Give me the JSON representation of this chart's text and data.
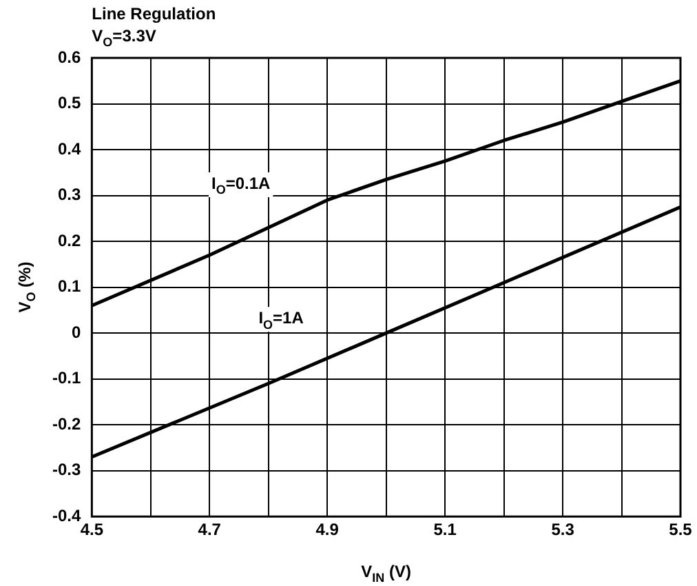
{
  "chart_data": {
    "type": "line",
    "title": "Line Regulation",
    "subtitle": "V$_{O}$=3.3V",
    "xlabel": "V$_{IN}$ (V)",
    "ylabel": "V$_{O}$ (%)",
    "xlim": [
      4.5,
      5.5
    ],
    "xticks": [
      4.5,
      {
        "value": 4.6,
        "label": null
      },
      4.7,
      {
        "value": 4.8,
        "label": null
      },
      4.9,
      {
        "value": 5.0,
        "label": null
      },
      5.1,
      {
        "value": 5.2,
        "label": null
      },
      5.3,
      {
        "value": 5.4,
        "label": null
      },
      5.5
    ],
    "ylim": [
      -0.4,
      0.6
    ],
    "yticks": [
      -0.4,
      -0.3,
      -0.2,
      -0.1,
      0,
      0.1,
      0.2,
      0.3,
      0.4,
      0.5,
      0.6
    ],
    "grid": true,
    "legend": false,
    "marker": "none",
    "line_style": "solid",
    "series": [
      {
        "name": "I$_{O}$=0.1A",
        "color": "#000000",
        "x": [
          4.5,
          4.7,
          4.9,
          5.0,
          5.1,
          5.2,
          5.3,
          5.4,
          5.5
        ],
        "values": [
          0.06,
          0.17,
          0.29,
          0.335,
          0.375,
          0.42,
          0.46,
          0.505,
          0.55
        ]
      },
      {
        "name": "I$_{O}$=1A",
        "color": "#000000",
        "x": [
          4.5,
          4.8,
          5.0,
          5.2,
          5.5
        ],
        "values": [
          -0.27,
          -0.11,
          0.0,
          0.11,
          0.275
        ]
      }
    ]
  }
}
